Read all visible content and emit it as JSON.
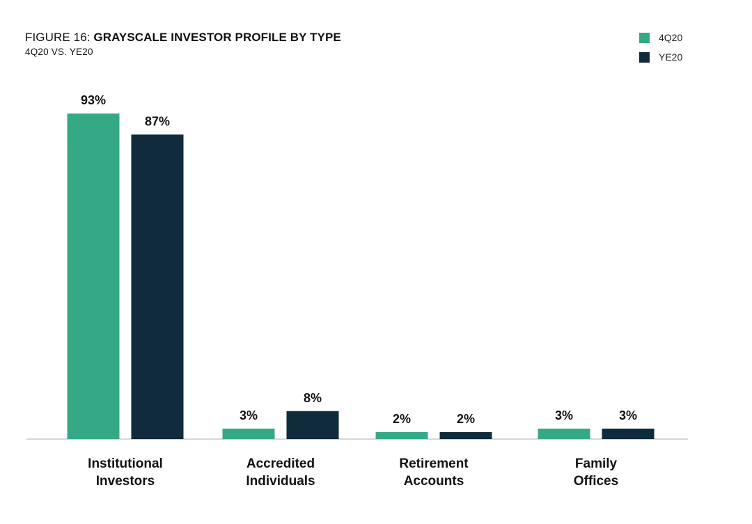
{
  "title": {
    "prefix": "FIGURE 16: ",
    "main": "GRAYSCALE INVESTOR PROFILE BY TYPE",
    "subtitle": "4Q20 VS. YE20"
  },
  "colors": {
    "series_4q20": "#35a986",
    "series_ye20": "#0f2b3c",
    "baseline": "#c8c8c8"
  },
  "chart_data": {
    "type": "bar",
    "categories": [
      [
        "Institutional",
        "Investors"
      ],
      [
        "Accredited",
        "Individuals"
      ],
      [
        "Retirement",
        "Accounts"
      ],
      [
        "Family",
        "Offices"
      ]
    ],
    "series": [
      {
        "name": "4Q20",
        "values": [
          93,
          3,
          2,
          3
        ],
        "labels": [
          "93%",
          "3%",
          "2%",
          "3%"
        ]
      },
      {
        "name": "YE20",
        "values": [
          87,
          8,
          2,
          3
        ],
        "labels": [
          "87%",
          "8%",
          "2%",
          "3%"
        ]
      }
    ],
    "title": "GRAYSCALE INVESTOR PROFILE BY TYPE",
    "subtitle": "4Q20 VS. YE20",
    "xlabel": "",
    "ylabel": "",
    "unit": "%",
    "ylim": [
      0,
      100
    ],
    "grid": false,
    "legend_position": "top-right"
  }
}
